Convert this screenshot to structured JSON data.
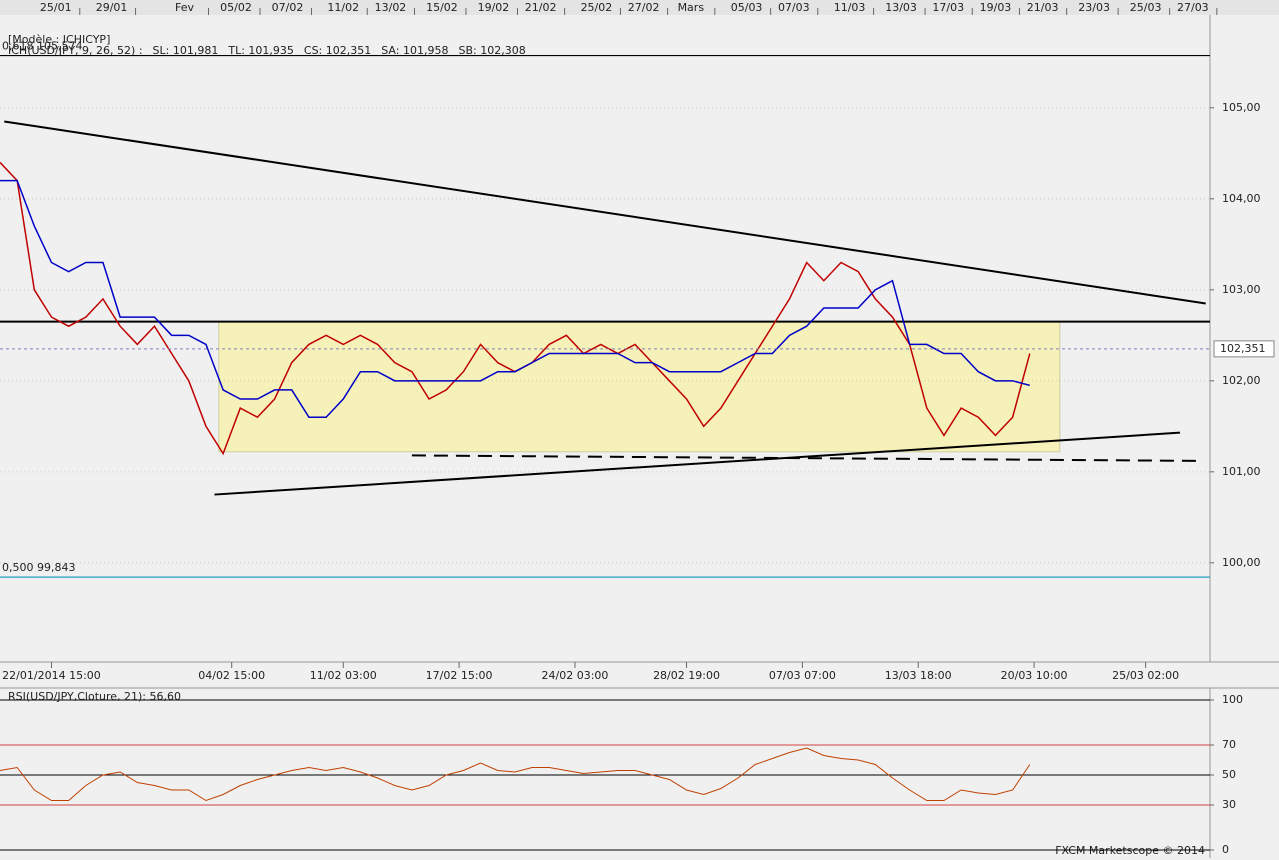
{
  "model": "[Modèle : ICHICYP]",
  "footer": "FXCM Marketscope © 2014",
  "top_axis": [
    {
      "value": 13,
      "label": "25/01"
    },
    {
      "value": 26,
      "label": "29/01"
    },
    {
      "value": 43,
      "label": "Fev"
    },
    {
      "value": 55,
      "label": "05/02"
    },
    {
      "value": 67,
      "label": "07/02"
    },
    {
      "value": 80,
      "label": "11/02"
    },
    {
      "value": 91,
      "label": "13/02"
    },
    {
      "value": 103,
      "label": "15/02"
    },
    {
      "value": 115,
      "label": "19/02"
    },
    {
      "value": 126,
      "label": "21/02"
    },
    {
      "value": 139,
      "label": "25/02"
    },
    {
      "value": 150,
      "label": "27/02"
    },
    {
      "value": 161,
      "label": "Mars"
    },
    {
      "value": 174,
      "label": "05/03"
    },
    {
      "value": 185,
      "label": "07/03"
    },
    {
      "value": 198,
      "label": "11/03"
    },
    {
      "value": 210,
      "label": "13/03"
    },
    {
      "value": 221,
      "label": "17/03"
    },
    {
      "value": 232,
      "label": "19/03"
    },
    {
      "value": 243,
      "label": "21/03"
    },
    {
      "value": 255,
      "label": "23/03"
    },
    {
      "value": 267,
      "label": "25/03"
    },
    {
      "value": 278,
      "label": "27/03"
    }
  ],
  "bottom_axis": [
    {
      "value": 12,
      "label": "22/01/2014 15:00"
    },
    {
      "value": 54,
      "label": "04/02 15:00"
    },
    {
      "value": 80,
      "label": "11/02 03:00"
    },
    {
      "value": 107,
      "label": "17/02 15:00"
    },
    {
      "value": 134,
      "label": "24/02 03:00"
    },
    {
      "value": 160,
      "label": "28/02 19:00"
    },
    {
      "value": 187,
      "label": "07/03 07:00"
    },
    {
      "value": 214,
      "label": "13/03 18:00"
    },
    {
      "value": 241,
      "label": "20/03 10:00"
    },
    {
      "value": 267,
      "label": "25/03 02:00"
    }
  ],
  "chart_data": [
    {
      "type": "line",
      "xlim": [
        0,
        282
      ],
      "ylim": [
        98.91,
        106.02
      ],
      "yticks": [
        {
          "value": 100,
          "label": "100,00"
        },
        {
          "value": 101,
          "label": "101,00"
        },
        {
          "value": 102,
          "label": "102,00"
        },
        {
          "value": 103,
          "label": "103,00"
        },
        {
          "value": 104,
          "label": "104,00"
        },
        {
          "value": 105,
          "label": "105,00"
        }
      ],
      "grid": true,
      "legend": [
        {
          "text": "ICH(USD/JPY, 9, 26, 52) :",
          "color": "#c00000"
        },
        {
          "text": "SL: 101,981",
          "color": "#c00000"
        },
        {
          "text": "TL: 101,935",
          "color": "#0000c0"
        },
        {
          "text": "CS: 102,351",
          "color": "#333333"
        },
        {
          "text": "SA: 101,958",
          "color": "#e08020"
        },
        {
          "text": "SB: 102,308",
          "color": "#2090d0"
        }
      ],
      "x": [
        0,
        4,
        8,
        12,
        16,
        20,
        24,
        28,
        32,
        36,
        40,
        44,
        48,
        52,
        56,
        60,
        64,
        68,
        72,
        76,
        80,
        84,
        88,
        92,
        96,
        100,
        104,
        108,
        112,
        116,
        120,
        124,
        128,
        132,
        136,
        140,
        144,
        148,
        152,
        156,
        160,
        164,
        168,
        172,
        176,
        180,
        184,
        188,
        192,
        196,
        200,
        204,
        208,
        212,
        216,
        220,
        224,
        228,
        232,
        236,
        240
      ],
      "series": [
        {
          "color": "#c00000",
          "values": [
            104.4,
            104.2,
            103.0,
            102.7,
            102.6,
            102.7,
            102.9,
            102.6,
            102.4,
            102.6,
            102.3,
            102.0,
            101.5,
            101.2,
            101.7,
            101.6,
            101.8,
            102.2,
            102.4,
            102.5,
            102.4,
            102.5,
            102.4,
            102.2,
            102.1,
            101.8,
            101.9,
            102.1,
            102.4,
            102.2,
            102.1,
            102.2,
            102.4,
            102.5,
            102.3,
            102.4,
            102.3,
            102.4,
            102.2,
            102.0,
            101.8,
            101.5,
            101.7,
            102.0,
            102.3,
            102.6,
            102.9,
            103.3,
            103.1,
            103.3,
            103.2,
            102.9,
            102.7,
            102.4,
            101.7,
            101.4,
            101.7,
            101.6,
            101.4,
            101.6,
            102.3
          ]
        },
        {
          "color": "#0000c8",
          "values": [
            104.2,
            104.2,
            103.7,
            103.3,
            103.2,
            103.3,
            103.3,
            102.7,
            102.7,
            102.7,
            102.5,
            102.5,
            102.4,
            101.9,
            101.8,
            101.8,
            101.9,
            101.9,
            101.6,
            101.6,
            101.8,
            102.1,
            102.1,
            102.0,
            102.0,
            102.0,
            102.0,
            102.0,
            102.0,
            102.1,
            102.1,
            102.2,
            102.3,
            102.3,
            102.3,
            102.3,
            102.3,
            102.2,
            102.2,
            102.1,
            102.1,
            102.1,
            102.1,
            102.2,
            102.3,
            102.3,
            102.5,
            102.6,
            102.8,
            102.8,
            102.8,
            103.0,
            103.1,
            102.4,
            102.4,
            102.3,
            102.3,
            102.1,
            102.0,
            102.0,
            101.95
          ]
        }
      ],
      "box": {
        "x": [
          51,
          247
        ],
        "y": [
          101.22,
          102.65
        ],
        "color": "#f8f2b0"
      },
      "hlines": [
        {
          "value": 102.65,
          "color": "#000000"
        },
        {
          "value": 105.574,
          "label": "0,618 105,574",
          "color": "#000000"
        },
        {
          "value": 99.843,
          "label": "0,500 99,843",
          "color": "#20a0c0"
        }
      ],
      "trendlines": [
        {
          "x": [
            1,
            281
          ],
          "y": [
            104.85,
            102.85
          ],
          "dash": false
        },
        {
          "x": [
            50,
            275
          ],
          "y": [
            100.75,
            101.43
          ],
          "dash": false
        },
        {
          "x": [
            96,
            280
          ],
          "y": [
            101.18,
            101.12
          ],
          "dash": true
        }
      ],
      "price_label": {
        "value": 102.351,
        "label": "102,351"
      }
    },
    {
      "type": "line",
      "title": "RSI(USD/JPY,Cloture, 21): 56,60",
      "xlim": [
        0,
        282
      ],
      "ylim": [
        0,
        100
      ],
      "yticks": [
        0,
        30,
        50,
        70,
        100
      ],
      "x": [
        0,
        4,
        8,
        12,
        16,
        20,
        24,
        28,
        32,
        36,
        40,
        44,
        48,
        52,
        56,
        60,
        64,
        68,
        72,
        76,
        80,
        84,
        88,
        92,
        96,
        100,
        104,
        108,
        112,
        116,
        120,
        124,
        128,
        132,
        136,
        140,
        144,
        148,
        152,
        156,
        160,
        164,
        168,
        172,
        176,
        180,
        184,
        188,
        192,
        196,
        200,
        204,
        208,
        212,
        216,
        220,
        224,
        228,
        232,
        236,
        240
      ],
      "series": [
        {
          "color": "#c04000",
          "values": [
            53,
            55,
            40,
            33,
            33,
            43,
            50,
            52,
            45,
            43,
            40,
            40,
            33,
            37,
            43,
            47,
            50,
            53,
            55,
            53,
            55,
            52,
            48,
            43,
            40,
            43,
            50,
            53,
            58,
            53,
            52,
            55,
            55,
            53,
            51,
            52,
            53,
            53,
            50,
            47,
            40,
            37,
            41,
            48,
            57,
            61,
            65,
            68,
            63,
            61,
            60,
            57,
            48,
            40,
            33,
            33,
            40,
            38,
            37,
            40,
            57
          ]
        }
      ]
    }
  ]
}
